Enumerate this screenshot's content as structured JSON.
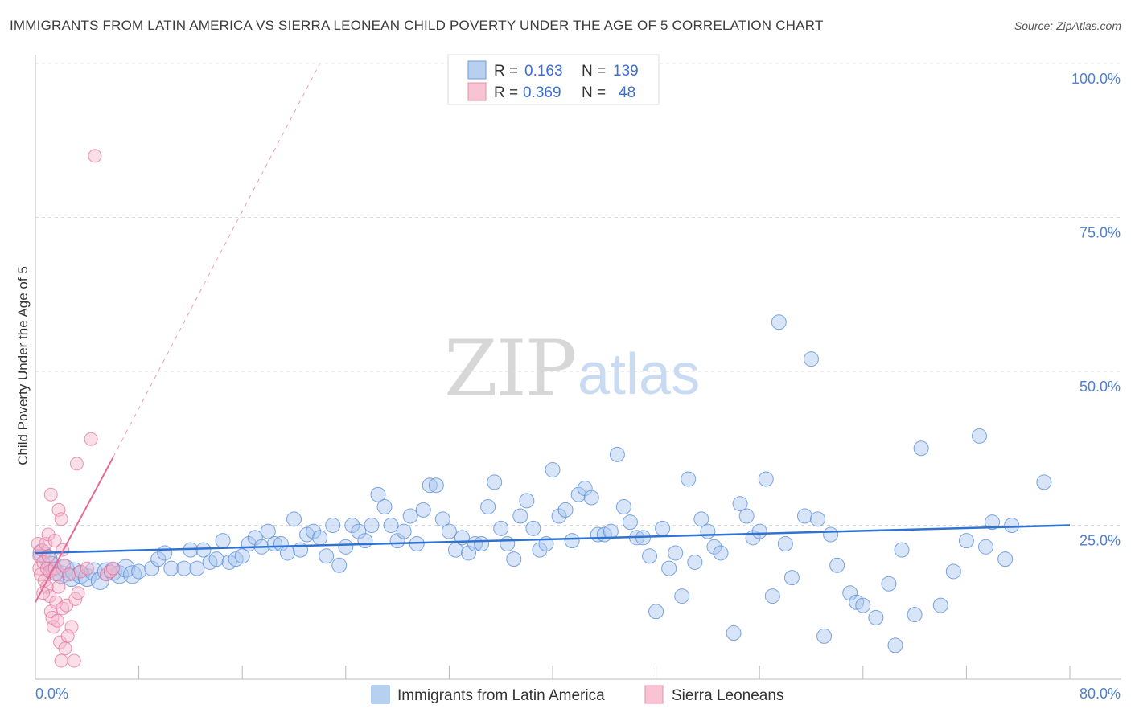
{
  "title": "IMMIGRANTS FROM LATIN AMERICA VS SIERRA LEONEAN CHILD POVERTY UNDER THE AGE OF 5 CORRELATION CHART",
  "source": "Source: ZipAtlas.com",
  "watermark": {
    "zip": "ZIP",
    "atlas": "atlas"
  },
  "colors": {
    "blue": "#5b8fd9",
    "blue_fill": "#a9c6ef",
    "pink": "#e36b97",
    "pink_fill": "#f4b6cb"
  },
  "legend_top": {
    "r_label": "R =",
    "n_label": "N =",
    "rows": [
      {
        "r": "0.163",
        "n": "139"
      },
      {
        "r": "0.369",
        "n": "48"
      }
    ]
  },
  "chart_data": {
    "type": "scatter",
    "title": "IMMIGRANTS FROM LATIN AMERICA VS SIERRA LEONEAN CHILD POVERTY UNDER THE AGE OF 5 CORRELATION CHART",
    "xlabel": "",
    "ylabel": "Child Poverty Under the Age of 5",
    "xlim": [
      0,
      80
    ],
    "ylim": [
      0,
      100
    ],
    "x_tick_labels": [
      "0.0%",
      "80.0%"
    ],
    "y_tick_labels": [
      "100.0%",
      "75.0%",
      "50.0%",
      "25.0%"
    ],
    "y_ticks": [
      100,
      75,
      50,
      25
    ],
    "series": [
      {
        "name": "Immigrants from Latin America",
        "r": 0.163,
        "n": 139,
        "trend": {
          "x": [
            0,
            80
          ],
          "y": [
            20.5,
            25.0
          ]
        },
        "points": [
          [
            0.5,
            20.5
          ],
          [
            1,
            19.5
          ],
          [
            1.2,
            18.5
          ],
          [
            1.5,
            17.5
          ],
          [
            2,
            17
          ],
          [
            2.3,
            18
          ],
          [
            2.8,
            16.5
          ],
          [
            3,
            17.5
          ],
          [
            3.5,
            17
          ],
          [
            4,
            16.5
          ],
          [
            4.5,
            17.5
          ],
          [
            5,
            16
          ],
          [
            5.5,
            17.5
          ],
          [
            6,
            17.5
          ],
          [
            6.5,
            17
          ],
          [
            7,
            18
          ],
          [
            7.5,
            17
          ],
          [
            8,
            17.5
          ],
          [
            9,
            18
          ],
          [
            9.5,
            19.5
          ],
          [
            10,
            20.5
          ],
          [
            10.5,
            18
          ],
          [
            11.5,
            18
          ],
          [
            12,
            21
          ],
          [
            12.5,
            18
          ],
          [
            13,
            21
          ],
          [
            13.5,
            19
          ],
          [
            14,
            19.5
          ],
          [
            14.5,
            22.5
          ],
          [
            15,
            19
          ],
          [
            15.5,
            19.5
          ],
          [
            16,
            20
          ],
          [
            16.5,
            22
          ],
          [
            17,
            23
          ],
          [
            17.5,
            21.5
          ],
          [
            18,
            24
          ],
          [
            18.5,
            22
          ],
          [
            19,
            22
          ],
          [
            19.5,
            20.5
          ],
          [
            20,
            26
          ],
          [
            20.5,
            21
          ],
          [
            21,
            23.5
          ],
          [
            21.5,
            24
          ],
          [
            22,
            23
          ],
          [
            22.5,
            20
          ],
          [
            23,
            25
          ],
          [
            23.5,
            18.5
          ],
          [
            24,
            21.5
          ],
          [
            24.5,
            25
          ],
          [
            25,
            24
          ],
          [
            25.5,
            22.5
          ],
          [
            26,
            25
          ],
          [
            26.5,
            30
          ],
          [
            27,
            28
          ],
          [
            27.5,
            25
          ],
          [
            28,
            22.5
          ],
          [
            28.5,
            24
          ],
          [
            29,
            26.5
          ],
          [
            29.5,
            22
          ],
          [
            30,
            27.5
          ],
          [
            30.5,
            31.5
          ],
          [
            31,
            31.5
          ],
          [
            31.5,
            26
          ],
          [
            32,
            24
          ],
          [
            32.5,
            21
          ],
          [
            33,
            23
          ],
          [
            33.5,
            20.5
          ],
          [
            34,
            22
          ],
          [
            34.5,
            22
          ],
          [
            35,
            28
          ],
          [
            35.5,
            32
          ],
          [
            36,
            24.5
          ],
          [
            36.5,
            22
          ],
          [
            37,
            19.5
          ],
          [
            37.5,
            26.5
          ],
          [
            38,
            29
          ],
          [
            38.5,
            24.5
          ],
          [
            39,
            21
          ],
          [
            39.5,
            22
          ],
          [
            40,
            34
          ],
          [
            40.5,
            26.5
          ],
          [
            41,
            27.5
          ],
          [
            41.5,
            22.5
          ],
          [
            42,
            30
          ],
          [
            42.5,
            31
          ],
          [
            43,
            29.5
          ],
          [
            43.5,
            23.5
          ],
          [
            44,
            23.5
          ],
          [
            44.5,
            24
          ],
          [
            45,
            36.5
          ],
          [
            45.5,
            28
          ],
          [
            46,
            25.5
          ],
          [
            46.5,
            23
          ],
          [
            47,
            23
          ],
          [
            47.5,
            20
          ],
          [
            48,
            11
          ],
          [
            48.5,
            24.5
          ],
          [
            49,
            18
          ],
          [
            49.5,
            20.5
          ],
          [
            50,
            13.5
          ],
          [
            50.5,
            32.5
          ],
          [
            51,
            19
          ],
          [
            51.5,
            26
          ],
          [
            52,
            24
          ],
          [
            52.5,
            21.5
          ],
          [
            53,
            20.5
          ],
          [
            54,
            7.5
          ],
          [
            54.5,
            28.5
          ],
          [
            55,
            26.5
          ],
          [
            55.5,
            23
          ],
          [
            56,
            24
          ],
          [
            56.5,
            32.5
          ],
          [
            57,
            13.5
          ],
          [
            57.5,
            58
          ],
          [
            58,
            22
          ],
          [
            58.5,
            16.5
          ],
          [
            59.5,
            26.5
          ],
          [
            60,
            52
          ],
          [
            60.5,
            26
          ],
          [
            61,
            7
          ],
          [
            61.5,
            23.5
          ],
          [
            62,
            18.5
          ],
          [
            63,
            14
          ],
          [
            63.5,
            12.5
          ],
          [
            64,
            12
          ],
          [
            65,
            10
          ],
          [
            66,
            15.5
          ],
          [
            66.5,
            5.5
          ],
          [
            67,
            21
          ],
          [
            68,
            10.5
          ],
          [
            68.5,
            37.5
          ],
          [
            70,
            12
          ],
          [
            71,
            17.5
          ],
          [
            72,
            22.5
          ],
          [
            73,
            39.5
          ],
          [
            73.5,
            21.5
          ],
          [
            74,
            25.5
          ],
          [
            75,
            19.5
          ],
          [
            75.5,
            25
          ],
          [
            78,
            32
          ]
        ]
      },
      {
        "name": "Sierra Leoneans",
        "r": 0.369,
        "n": 48,
        "trend": {
          "x": [
            0,
            6
          ],
          "y": [
            12.5,
            36
          ]
        },
        "trend_dashed": {
          "x": [
            6,
            22
          ],
          "y": [
            36,
            100
          ]
        },
        "points": [
          [
            0.2,
            22
          ],
          [
            0.3,
            20
          ],
          [
            0.3,
            18
          ],
          [
            0.4,
            17
          ],
          [
            0.5,
            21
          ],
          [
            0.6,
            19
          ],
          [
            0.7,
            16
          ],
          [
            0.8,
            22
          ],
          [
            0.9,
            18
          ],
          [
            0.9,
            15
          ],
          [
            1,
            23.5
          ],
          [
            1,
            20
          ],
          [
            1.1,
            17.5
          ],
          [
            1.1,
            13.5
          ],
          [
            1.2,
            11
          ],
          [
            1.2,
            30
          ],
          [
            1.3,
            10
          ],
          [
            1.4,
            8.5
          ],
          [
            1.5,
            18
          ],
          [
            1.5,
            22.5
          ],
          [
            1.6,
            17
          ],
          [
            1.6,
            12.5
          ],
          [
            1.7,
            9.5
          ],
          [
            1.8,
            27.5
          ],
          [
            1.8,
            15
          ],
          [
            1.9,
            6
          ],
          [
            2,
            26
          ],
          [
            2,
            3
          ],
          [
            2.1,
            21
          ],
          [
            2.1,
            11.5
          ],
          [
            2.2,
            18.5
          ],
          [
            2.3,
            5
          ],
          [
            2.4,
            12
          ],
          [
            2.5,
            7
          ],
          [
            2.6,
            17
          ],
          [
            2.8,
            8.5
          ],
          [
            3,
            3
          ],
          [
            3.1,
            13
          ],
          [
            3.2,
            35
          ],
          [
            3.3,
            14
          ],
          [
            3.5,
            17.5
          ],
          [
            4,
            18
          ],
          [
            4.3,
            39
          ],
          [
            4.6,
            85
          ],
          [
            5.5,
            17
          ],
          [
            5.8,
            17.5
          ],
          [
            6,
            18
          ],
          [
            0.6,
            14
          ]
        ]
      }
    ]
  },
  "bottom_legend": [
    {
      "label": "Immigrants from Latin America"
    },
    {
      "label": "Sierra Leoneans"
    }
  ]
}
